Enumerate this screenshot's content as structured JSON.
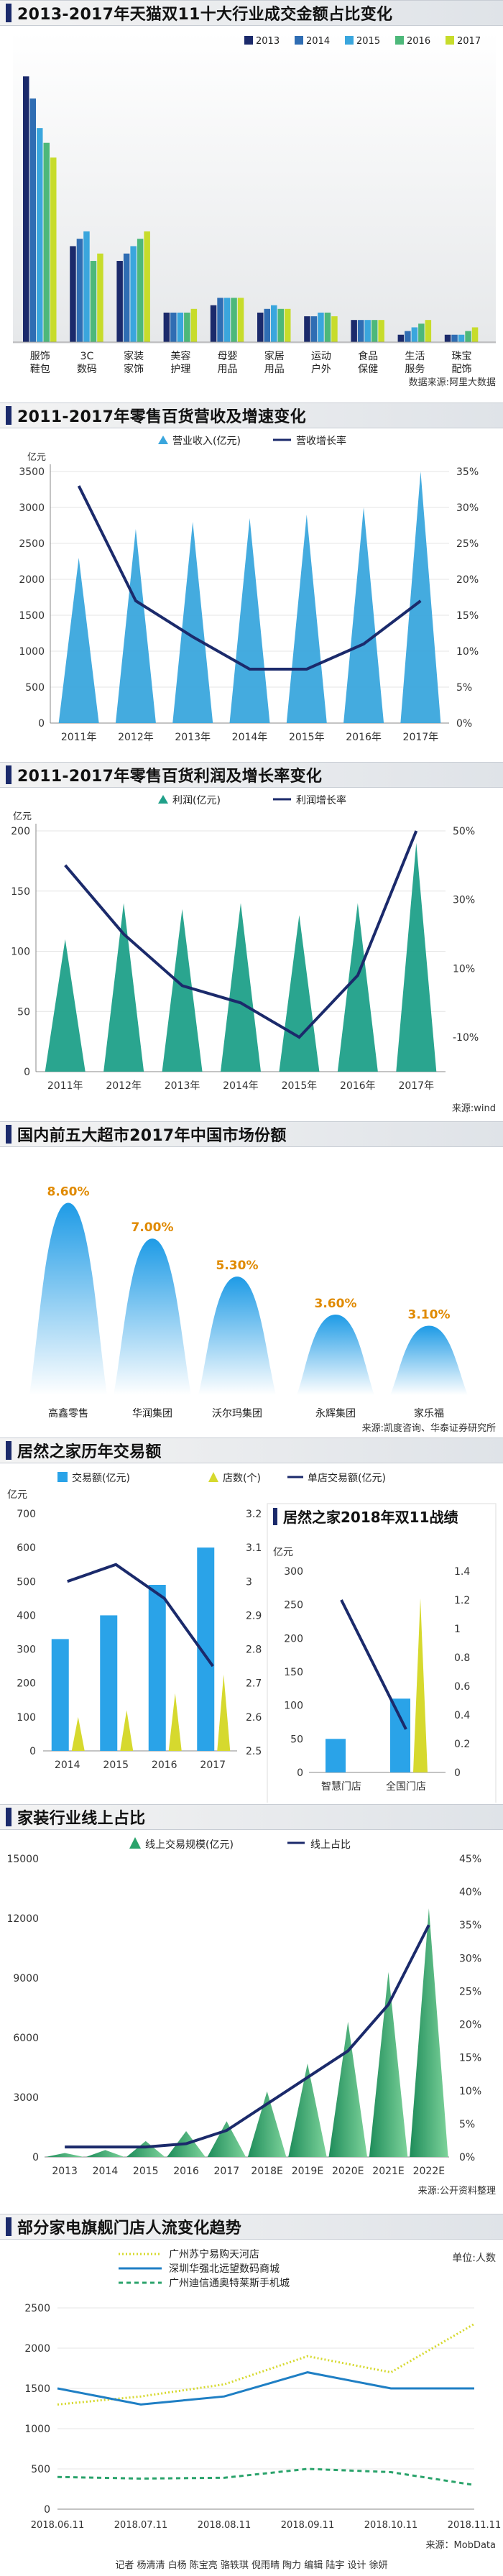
{
  "chart_data": [
    {
      "type": "bar",
      "title": "2013-2017年天猫双11十大行业成交金额占比变化",
      "legend": [
        "2013",
        "2014",
        "2015",
        "2016",
        "2017"
      ],
      "series_colors": [
        "#1b2a6b",
        "#2f6db3",
        "#3aa6dd",
        "#4db87a",
        "#c7dc2b"
      ],
      "categories": [
        "服饰\n鞋包",
        "3C\n数码",
        "家装\n家饰",
        "美容\n护理",
        "母婴\n用品",
        "家居\n用品",
        "运动\n户外",
        "食品\n保健",
        "生活\n服务",
        "珠宝\n配饰"
      ],
      "series": [
        {
          "name": "2013",
          "values": [
            36.0,
            13.0,
            11.0,
            4.0,
            5.0,
            4.0,
            3.5,
            3.0,
            1.0,
            1.0
          ]
        },
        {
          "name": "2014",
          "values": [
            33.0,
            14.0,
            12.0,
            4.0,
            6.0,
            4.5,
            3.5,
            3.0,
            1.5,
            1.0
          ]
        },
        {
          "name": "2015",
          "values": [
            29.0,
            15.0,
            13.0,
            4.0,
            6.0,
            5.0,
            4.0,
            3.0,
            2.0,
            1.0
          ]
        },
        {
          "name": "2016",
          "values": [
            27.0,
            11.0,
            14.0,
            4.0,
            6.0,
            4.5,
            4.0,
            3.0,
            2.5,
            1.5
          ]
        },
        {
          "name": "2017",
          "values": [
            25.0,
            12.0,
            15.0,
            4.5,
            6.0,
            4.5,
            3.5,
            3.0,
            3.0,
            2.0
          ]
        }
      ],
      "source": "数据来源:阿里大数据"
    },
    {
      "type": "combo",
      "title": "2011-2017年零售百货营收及增速变化",
      "categories": [
        "2011年",
        "2012年",
        "2013年",
        "2014年",
        "2015年",
        "2016年",
        "2017年"
      ],
      "bar_series": {
        "name": "营业收入(亿元)",
        "values": [
          2300,
          2700,
          2800,
          2850,
          2900,
          3000,
          3500
        ],
        "color": "#3aa6dd"
      },
      "line_series": {
        "name": "营收增长率",
        "values": [
          33,
          17,
          12,
          7.5,
          7.5,
          11,
          17
        ],
        "color": "#1b2a6b"
      },
      "y_left": {
        "unit": "亿元",
        "min": 0,
        "max": 3500,
        "ticks": [
          0,
          500,
          1000,
          1500,
          2000,
          2500,
          3000,
          3500
        ]
      },
      "y_right": {
        "min": 0,
        "max": 35,
        "ticks": [
          "0%",
          "5%",
          "10%",
          "15%",
          "20%",
          "25%",
          "30%",
          "35%"
        ]
      }
    },
    {
      "type": "combo",
      "title": "2011-2017年零售百货利润及增长率变化",
      "categories": [
        "2011年",
        "2012年",
        "2013年",
        "2014年",
        "2015年",
        "2016年",
        "2017年"
      ],
      "bar_series": {
        "name": "利润(亿元)",
        "values": [
          110,
          140,
          135,
          140,
          130,
          140,
          190
        ],
        "color": "#1fa089"
      },
      "line_series": {
        "name": "利润增长率",
        "values": [
          40,
          20,
          5,
          0,
          -10,
          8,
          50
        ],
        "color": "#1b2a6b"
      },
      "y_left": {
        "unit": "亿元",
        "min": 0,
        "max": 200,
        "ticks": [
          0,
          50,
          100,
          150,
          200
        ]
      },
      "y_right": {
        "min": -20,
        "max": 50,
        "ticks": [
          "-10%",
          "10%",
          "30%",
          "50%"
        ]
      },
      "source": "来源:wind"
    },
    {
      "type": "bar",
      "title": "国内前五大超市2017年中国市场份额",
      "categories": [
        "高鑫零售",
        "华润集团",
        "沃尔玛集团",
        "永辉集团",
        "家乐福"
      ],
      "values": [
        8.6,
        7.0,
        5.3,
        3.6,
        3.1
      ],
      "data_labels": [
        "8.60%",
        "7.00%",
        "5.30%",
        "3.60%",
        "3.10%"
      ],
      "colors": [
        "#2aa3e8",
        "#2aa3e8",
        "#2aa3e8",
        "#2aa3e8",
        "#2aa3e8"
      ],
      "source": "来源:凯度咨询、华泰证券研究所"
    },
    {
      "type": "combo",
      "title": "居然之家历年交易额",
      "categories": [
        "2014",
        "2015",
        "2016",
        "2017"
      ],
      "legend": [
        "交易额(亿元)",
        "店数(个)",
        "单店交易额(亿元)"
      ],
      "bar_series": [
        {
          "name": "交易额(亿元)",
          "values": [
            330,
            400,
            490,
            600
          ],
          "color": "#2aa3e8"
        },
        {
          "name": "店数(个)",
          "values": [
            100,
            120,
            170,
            225
          ],
          "color": "#d6d92e"
        }
      ],
      "line_series": {
        "name": "单店交易额(亿元)",
        "values": [
          3.0,
          3.05,
          2.95,
          2.75
        ],
        "color": "#1b2a6b"
      },
      "y_left": {
        "unit": "亿元",
        "min": 0,
        "max": 700,
        "ticks": [
          0,
          100,
          200,
          300,
          400,
          500,
          600,
          700
        ]
      },
      "y_right": {
        "min": 2.5,
        "max": 3.2,
        "ticks": [
          2.5,
          2.6,
          2.7,
          2.8,
          2.9,
          3,
          3.1,
          3.2
        ]
      }
    },
    {
      "type": "combo",
      "title": "居然之家2018年双11战绩",
      "categories": [
        "智慧门店",
        "全国门店"
      ],
      "bar_series": [
        {
          "name": "交易额(亿元)",
          "values": [
            50,
            110
          ],
          "color": "#2aa3e8"
        },
        {
          "name": "店数(个)",
          "values": [
            0,
            260
          ],
          "color": "#d6d92e"
        }
      ],
      "line_series": {
        "name": "单店交易额(亿元)",
        "values": [
          1.2,
          0.3
        ],
        "color": "#1b2a6b"
      },
      "y_left": {
        "unit": "亿元",
        "min": 0,
        "max": 300,
        "ticks": [
          0,
          50,
          100,
          150,
          200,
          250,
          300
        ]
      },
      "y_right": {
        "min": 0,
        "max": 1.4,
        "ticks": [
          0,
          0.2,
          0.4,
          0.6,
          0.8,
          1,
          1.2,
          1.4
        ]
      }
    },
    {
      "type": "combo",
      "title": "家装行业线上占比",
      "categories": [
        "2013",
        "2014",
        "2015",
        "2016",
        "2017",
        "2018E",
        "2019E",
        "2020E",
        "2021E",
        "2022E"
      ],
      "bar_series": {
        "name": "线上交易规模(亿元)",
        "values": [
          200,
          350,
          800,
          1300,
          1800,
          3300,
          4700,
          6800,
          9300,
          12500
        ],
        "color": "#2aa36b"
      },
      "line_series": {
        "name": "线上占比",
        "values": [
          1.5,
          1.5,
          1.5,
          2,
          4,
          8,
          12,
          16,
          23,
          35
        ],
        "color": "#1b2a6b"
      },
      "y_left": {
        "min": 0,
        "max": 15000,
        "ticks": [
          0,
          3000,
          6000,
          9000,
          12000,
          15000
        ]
      },
      "y_right": {
        "min": 0,
        "max": 45,
        "ticks": [
          "0%",
          "5%",
          "10%",
          "15%",
          "20%",
          "25%",
          "30%",
          "35%",
          "40%",
          "45%"
        ]
      },
      "source": "来源:公开资料整理"
    },
    {
      "type": "line",
      "title": "部分家电旗舰门店人流变化趋势",
      "unit": "单位:人数",
      "x": [
        "2018.06.11",
        "2018.07.11",
        "2018.08.11",
        "2018.09.11",
        "2018.10.11",
        "2018.11.11"
      ],
      "series": [
        {
          "name": "广州苏宁易购天河店",
          "values": [
            1300,
            1400,
            1550,
            1900,
            1700,
            2300
          ],
          "color": "#d6d92e"
        },
        {
          "name": "深圳华强北远望数码商城",
          "values": [
            1500,
            1300,
            1400,
            1700,
            1500,
            1500
          ],
          "color": "#1f7fc4"
        },
        {
          "name": "广州迪信通奥特莱斯手机城",
          "values": [
            400,
            380,
            390,
            500,
            460,
            300
          ],
          "color": "#2aa36b"
        }
      ],
      "y": {
        "min": 0,
        "max": 2500,
        "ticks": [
          0,
          500,
          1000,
          1500,
          2000,
          2500
        ]
      },
      "source": "来源：MobData"
    }
  ],
  "footer": "记者 杨清清 白杨 陈宝亮 骆轶琪 倪雨晴 陶力 编辑 陆宇 设计 徐妍"
}
